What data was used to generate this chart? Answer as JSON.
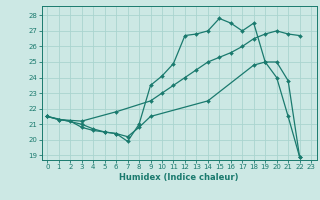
{
  "xlabel": "Humidex (Indice chaleur)",
  "bg_color": "#cce8e4",
  "grid_color": "#aad4cf",
  "line_color": "#1a7a6e",
  "xlim": [
    -0.5,
    23.5
  ],
  "ylim": [
    18.7,
    28.6
  ],
  "xticks": [
    0,
    1,
    2,
    3,
    4,
    5,
    6,
    7,
    8,
    9,
    10,
    11,
    12,
    13,
    14,
    15,
    16,
    17,
    18,
    19,
    20,
    21,
    22,
    23
  ],
  "yticks": [
    19,
    20,
    21,
    22,
    23,
    24,
    25,
    26,
    27,
    28
  ],
  "line1_x": [
    0,
    1,
    2,
    3,
    4,
    5,
    6,
    7,
    8,
    9,
    10,
    11,
    12,
    13,
    14,
    15,
    16,
    17,
    18,
    19,
    20,
    21,
    22
  ],
  "line1_y": [
    21.5,
    21.3,
    21.2,
    20.8,
    20.6,
    20.5,
    20.4,
    19.9,
    21.0,
    23.5,
    24.1,
    24.9,
    26.7,
    26.8,
    27.0,
    27.8,
    27.5,
    27.0,
    27.5,
    25.0,
    24.0,
    21.5,
    18.9
  ],
  "line2_x": [
    0,
    1,
    3,
    6,
    9,
    10,
    11,
    12,
    13,
    14,
    15,
    16,
    17,
    18,
    19,
    20,
    21,
    22
  ],
  "line2_y": [
    21.5,
    21.3,
    21.2,
    21.8,
    22.5,
    23.0,
    23.5,
    24.0,
    24.5,
    25.0,
    25.3,
    25.6,
    26.0,
    26.5,
    26.8,
    27.0,
    26.8,
    26.7
  ],
  "line3_x": [
    0,
    3,
    4,
    5,
    6,
    7,
    8,
    9,
    14,
    18,
    19,
    20,
    21,
    22
  ],
  "line3_y": [
    21.5,
    21.0,
    20.7,
    20.5,
    20.4,
    20.2,
    20.8,
    21.5,
    22.5,
    24.8,
    25.0,
    25.0,
    23.8,
    18.9
  ]
}
